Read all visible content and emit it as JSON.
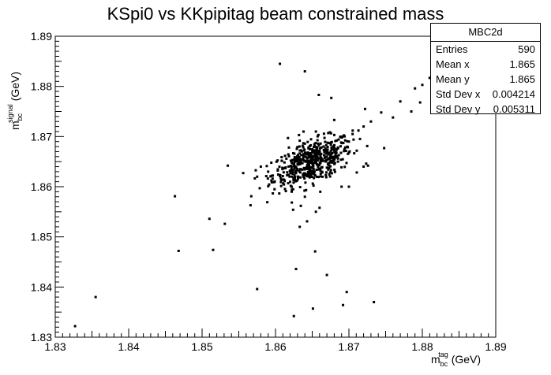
{
  "chart_data": {
    "type": "scatter",
    "title": "KSpi0 vs KKpipitag beam constrained mass",
    "xlabel": {
      "base": "m",
      "sub": "bc",
      "sup": "tag",
      "unit": "(GeV)"
    },
    "ylabel": {
      "base": "m",
      "sub": "bc",
      "sup": "signal",
      "unit": "(GeV)"
    },
    "xlim": [
      1.83,
      1.89
    ],
    "ylim": [
      1.83,
      1.89
    ],
    "x_ticks": [
      "1.83",
      "1.84",
      "1.85",
      "1.86",
      "1.87",
      "1.88",
      "1.89"
    ],
    "y_ticks": [
      "1.83",
      "1.84",
      "1.85",
      "1.86",
      "1.87",
      "1.88",
      "1.89"
    ],
    "grid": false,
    "legend": "none",
    "marker_color": "#000000",
    "outliers": [
      [
        1.8327,
        1.8322
      ],
      [
        1.8355,
        1.838
      ],
      [
        1.8463,
        1.8581
      ],
      [
        1.8468,
        1.8472
      ],
      [
        1.851,
        1.8536
      ],
      [
        1.8515,
        1.8474
      ],
      [
        1.8531,
        1.8526
      ],
      [
        1.8535,
        1.8642
      ],
      [
        1.8566,
        1.8563
      ],
      [
        1.8567,
        1.8581
      ],
      [
        1.8575,
        1.8396
      ],
      [
        1.8606,
        1.8845
      ],
      [
        1.8625,
        1.8342
      ],
      [
        1.8628,
        1.8436
      ],
      [
        1.864,
        1.883
      ],
      [
        1.8651,
        1.8357
      ],
      [
        1.8654,
        1.8471
      ],
      [
        1.8659,
        1.8783
      ],
      [
        1.8661,
        1.859
      ],
      [
        1.867,
        1.8424
      ],
      [
        1.8676,
        1.8777
      ],
      [
        1.8692,
        1.8364
      ],
      [
        1.8697,
        1.839
      ],
      [
        1.8722,
        1.8755
      ],
      [
        1.8734,
        1.837
      ],
      [
        1.8744,
        1.8748
      ],
      [
        1.8748,
        1.8677
      ],
      [
        1.876,
        1.8738
      ],
      [
        1.877,
        1.877
      ],
      [
        1.8785,
        1.875
      ],
      [
        1.879,
        1.8796
      ],
      [
        1.8797,
        1.8768
      ],
      [
        1.88,
        1.8803
      ],
      [
        1.881,
        1.8817
      ],
      [
        1.8821,
        1.8826
      ],
      [
        1.883,
        1.8828
      ],
      [
        1.868,
        1.8733
      ],
      [
        1.8655,
        1.871
      ],
      [
        1.8632,
        1.8703
      ],
      [
        1.8617,
        1.8697
      ],
      [
        1.87,
        1.86
      ],
      [
        1.872,
        1.864
      ],
      [
        1.8575,
        1.862
      ],
      [
        1.858,
        1.864
      ],
      [
        1.859,
        1.863
      ],
      [
        1.8598,
        1.8609
      ],
      [
        1.8622,
        1.86
      ],
      [
        1.866,
        1.8558
      ],
      [
        1.8633,
        1.852
      ],
      [
        1.8643,
        1.8531
      ],
      [
        1.8624,
        1.8554
      ],
      [
        1.8655,
        1.855
      ],
      [
        1.864,
        1.858
      ],
      [
        1.872,
        1.872
      ],
      [
        1.8713,
        1.8712
      ],
      [
        1.873,
        1.873
      ],
      [
        1.8705,
        1.8705
      ],
      [
        1.869,
        1.86
      ],
      [
        1.87,
        1.869
      ],
      [
        1.8726,
        1.8642
      ]
    ],
    "core": {
      "n": 530,
      "x_mean": 1.865,
      "y_mean": 1.865,
      "x_std": 0.0027,
      "y_std": 0.0024,
      "correlation": 0.55
    }
  },
  "stats": {
    "name": "MBC2d",
    "rows": [
      {
        "label": "Entries",
        "value": "590"
      },
      {
        "label": "Mean x",
        "value": "1.865"
      },
      {
        "label": "Mean y",
        "value": "1.865"
      },
      {
        "label": "Std Dev x",
        "value": "0.004214"
      },
      {
        "label": "Std Dev y",
        "value": "0.005311"
      }
    ]
  }
}
